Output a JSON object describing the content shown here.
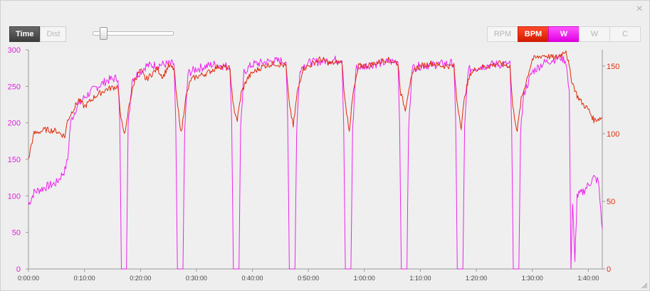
{
  "window": {
    "close_glyph": "×"
  },
  "toolbar": {
    "modes": [
      {
        "label": "Time",
        "active": true
      },
      {
        "label": "Dist",
        "active": false
      }
    ],
    "series_buttons": [
      {
        "label": "RPM",
        "state": "off"
      },
      {
        "label": "BPM",
        "state": "on",
        "color": "#e02a0a"
      },
      {
        "label": "W",
        "state": "on",
        "color": "#ee22ee"
      },
      {
        "label": "W",
        "state": "off"
      },
      {
        "label": "C",
        "state": "off"
      }
    ]
  },
  "chart_data": {
    "type": "line",
    "x_unit": "h:mm:ss",
    "xlim_minutes": [
      0,
      102.5
    ],
    "x_ticks": [
      "0:00:00",
      "0:10:00",
      "0:20:00",
      "0:30:00",
      "0:40:00",
      "0:50:00",
      "1:00:00",
      "1:10:00",
      "1:20:00",
      "1:30:00",
      "1:40:00"
    ],
    "y_left": {
      "ylim": [
        0,
        300
      ],
      "ticks": [
        "0",
        "50",
        "100",
        "150",
        "200",
        "250",
        "300"
      ],
      "color": "#dd22dd"
    },
    "y_right": {
      "ylim": [
        0,
        162
      ],
      "ticks": [
        "0",
        "50",
        "100",
        "150"
      ],
      "color": "#e03010"
    },
    "grid": false,
    "series": [
      {
        "name": "W",
        "axis": "left",
        "color": "#ee22ee",
        "points": [
          [
            0,
            88
          ],
          [
            1,
            105
          ],
          [
            3,
            112
          ],
          [
            5,
            118
          ],
          [
            6.5,
            135
          ],
          [
            7,
            150
          ],
          [
            7.5,
            200
          ],
          [
            8.5,
            220
          ],
          [
            10,
            235
          ],
          [
            12,
            248
          ],
          [
            14,
            258
          ],
          [
            16,
            262
          ],
          [
            16.3,
            200
          ],
          [
            16.6,
            0
          ],
          [
            17.5,
            0
          ],
          [
            17.8,
            195
          ],
          [
            18.5,
            260
          ],
          [
            20,
            270
          ],
          [
            21,
            278
          ],
          [
            24,
            280
          ],
          [
            26,
            281
          ],
          [
            26.3,
            200
          ],
          [
            26.6,
            0
          ],
          [
            27.6,
            0
          ],
          [
            27.9,
            190
          ],
          [
            28.5,
            268
          ],
          [
            30,
            274
          ],
          [
            33,
            280
          ],
          [
            35,
            278
          ],
          [
            36,
            276
          ],
          [
            36.3,
            200
          ],
          [
            36.6,
            0
          ],
          [
            37.6,
            0
          ],
          [
            37.9,
            190
          ],
          [
            38.5,
            270
          ],
          [
            40,
            280
          ],
          [
            43,
            284
          ],
          [
            46,
            285
          ],
          [
            46.3,
            200
          ],
          [
            46.6,
            0
          ],
          [
            47.6,
            0
          ],
          [
            47.9,
            190
          ],
          [
            48.5,
            275
          ],
          [
            50,
            282
          ],
          [
            53,
            285
          ],
          [
            56,
            287
          ],
          [
            56.3,
            200
          ],
          [
            56.6,
            0
          ],
          [
            57.6,
            0
          ],
          [
            57.9,
            190
          ],
          [
            58.5,
            275
          ],
          [
            60,
            278
          ],
          [
            63,
            282
          ],
          [
            66,
            285
          ],
          [
            66.3,
            200
          ],
          [
            66.6,
            0
          ],
          [
            67.6,
            0
          ],
          [
            67.9,
            190
          ],
          [
            68.5,
            275
          ],
          [
            70,
            278
          ],
          [
            73,
            280
          ],
          [
            76,
            282
          ],
          [
            76.3,
            200
          ],
          [
            76.6,
            0
          ],
          [
            77.6,
            0
          ],
          [
            77.9,
            190
          ],
          [
            78.5,
            272
          ],
          [
            80,
            276
          ],
          [
            83,
            280
          ],
          [
            86,
            280
          ],
          [
            86.3,
            200
          ],
          [
            86.6,
            0
          ],
          [
            87.6,
            0
          ],
          [
            87.9,
            190
          ],
          [
            88.5,
            240
          ],
          [
            90,
            270
          ],
          [
            92,
            282
          ],
          [
            95,
            290
          ],
          [
            96,
            285
          ],
          [
            96.6,
            240
          ],
          [
            96.9,
            0
          ],
          [
            97.2,
            90
          ],
          [
            97.6,
            10
          ],
          [
            98,
            100
          ],
          [
            99,
            105
          ],
          [
            100,
            115
          ],
          [
            101,
            125
          ],
          [
            101.8,
            120
          ],
          [
            102.5,
            55
          ]
        ]
      },
      {
        "name": "BPM",
        "axis": "right",
        "color": "#e02a0a",
        "points": [
          [
            0,
            80
          ],
          [
            0.5,
            92
          ],
          [
            1,
            100
          ],
          [
            3,
            103
          ],
          [
            5,
            102
          ],
          [
            6.5,
            98
          ],
          [
            7,
            110
          ],
          [
            8,
            118
          ],
          [
            9,
            125
          ],
          [
            10,
            120
          ],
          [
            12,
            128
          ],
          [
            14,
            133
          ],
          [
            16,
            135
          ],
          [
            16.5,
            110
          ],
          [
            17.3,
            100
          ],
          [
            18,
            122
          ],
          [
            19,
            140
          ],
          [
            20,
            147
          ],
          [
            21,
            140
          ],
          [
            23,
            148
          ],
          [
            24,
            142
          ],
          [
            25,
            150
          ],
          [
            26,
            148
          ],
          [
            26.5,
            125
          ],
          [
            27.3,
            100
          ],
          [
            28,
            125
          ],
          [
            29,
            140
          ],
          [
            30,
            142
          ],
          [
            32,
            145
          ],
          [
            34,
            150
          ],
          [
            36,
            148
          ],
          [
            36.5,
            122
          ],
          [
            37.3,
            110
          ],
          [
            38,
            130
          ],
          [
            39,
            140
          ],
          [
            40,
            145
          ],
          [
            42,
            150
          ],
          [
            44,
            152
          ],
          [
            46,
            150
          ],
          [
            46.5,
            125
          ],
          [
            47.3,
            105
          ],
          [
            48,
            130
          ],
          [
            49,
            148
          ],
          [
            50,
            150
          ],
          [
            52,
            155
          ],
          [
            54,
            152
          ],
          [
            56,
            153
          ],
          [
            56.5,
            125
          ],
          [
            57.3,
            103
          ],
          [
            58,
            130
          ],
          [
            59,
            150
          ],
          [
            60,
            150
          ],
          [
            62,
            152
          ],
          [
            64,
            155
          ],
          [
            66,
            152
          ],
          [
            66.5,
            130
          ],
          [
            67.3,
            118
          ],
          [
            68,
            135
          ],
          [
            69,
            148
          ],
          [
            70,
            150
          ],
          [
            72,
            152
          ],
          [
            74,
            150
          ],
          [
            76,
            150
          ],
          [
            76.5,
            125
          ],
          [
            77.3,
            105
          ],
          [
            78,
            130
          ],
          [
            79,
            145
          ],
          [
            80,
            148
          ],
          [
            82,
            150
          ],
          [
            84,
            152
          ],
          [
            86,
            150
          ],
          [
            86.5,
            120
          ],
          [
            87.3,
            102
          ],
          [
            88,
            125
          ],
          [
            89,
            140
          ],
          [
            90,
            155
          ],
          [
            92,
            158
          ],
          [
            94,
            156
          ],
          [
            95,
            158
          ],
          [
            96,
            162
          ],
          [
            97,
            140
          ],
          [
            98,
            128
          ],
          [
            99,
            122
          ],
          [
            100,
            118
          ],
          [
            101,
            110
          ],
          [
            102.5,
            112
          ]
        ]
      }
    ]
  }
}
